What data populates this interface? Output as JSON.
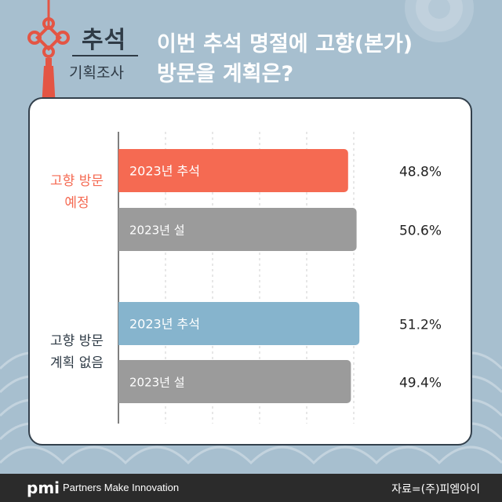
{
  "header": {
    "category_top": "추석",
    "category_bottom": "기획조사",
    "title_line1": "이번 추석 명절에 고향(본가)",
    "title_line2": "방문을 계획은?"
  },
  "colors": {
    "background": "#a7bfcf",
    "chuseok_visit": "#f56a52",
    "chuseok_novisit": "#86b4cd",
    "seollal": "#9b9b9b",
    "visit_label": "#f56a52",
    "novisit_label": "#2f3b46"
  },
  "chart_data": {
    "type": "bar",
    "orientation": "horizontal",
    "groups": [
      {
        "label_lines": [
          "고향 방문",
          "예정"
        ],
        "bars": [
          {
            "label": "2023년 추석",
            "value": 48.8,
            "value_label": "48.8%"
          },
          {
            "label": "2023년 설",
            "value": 50.6,
            "value_label": "50.6%"
          }
        ]
      },
      {
        "label_lines": [
          "고향 방문",
          "계획 없음"
        ],
        "bars": [
          {
            "label": "2023년 추석",
            "value": 51.2,
            "value_label": "51.2%"
          },
          {
            "label": "2023년 설",
            "value": 49.4,
            "value_label": "49.4%"
          }
        ]
      }
    ],
    "xlim": [
      0,
      60
    ],
    "grid": true
  },
  "footer": {
    "logo": "pmi",
    "tagline": "Partners Make Innovation",
    "source": "자료=(주)피엠아이"
  }
}
